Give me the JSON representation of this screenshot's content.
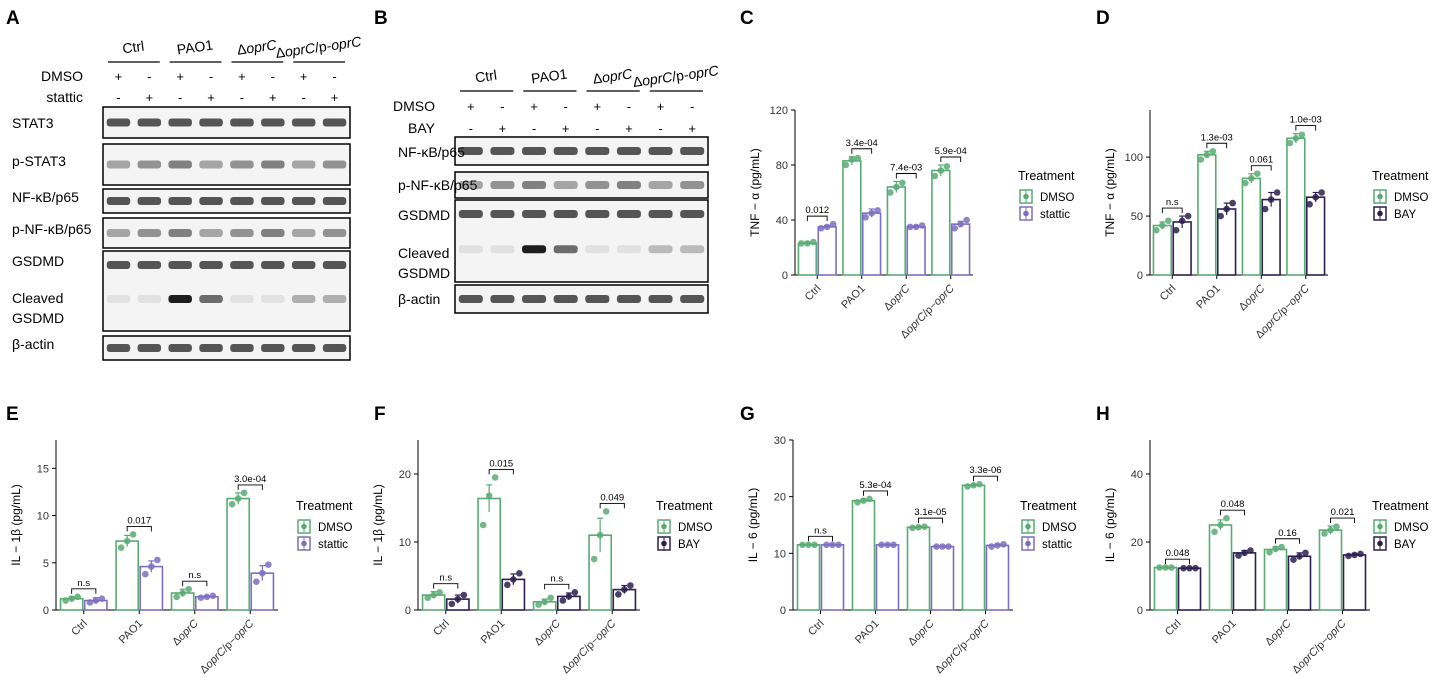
{
  "colors": {
    "dmso": "#5aaa74",
    "stattic": "#7b6fc0",
    "bay": "#2c1f4f"
  },
  "blots": {
    "A": {
      "letter": "A",
      "groups": [
        "Ctrl",
        "PAO1",
        "ΔoprC",
        "ΔoprC/p-oprC"
      ],
      "treat_rows": [
        {
          "label": "DMSO",
          "signs": [
            "+",
            "-",
            "+",
            "-",
            "+",
            "-",
            "+",
            "-"
          ]
        },
        {
          "label": "stattic",
          "signs": [
            "-",
            "+",
            "-",
            "+",
            "-",
            "+",
            "-",
            "+"
          ]
        }
      ],
      "boxes": [
        {
          "labels": [
            "STAT3"
          ]
        },
        {
          "labels": [
            "p-STAT3"
          ]
        },
        {
          "labels": [
            "NF-κB/p65"
          ]
        },
        {
          "labels": [
            "p-NF-κB/p65"
          ]
        },
        {
          "labels": [
            "GSDMD",
            "Cleaved",
            "GSDMD"
          ]
        },
        {
          "labels": [
            "β-actin"
          ]
        }
      ]
    },
    "B": {
      "letter": "B",
      "groups": [
        "Ctrl",
        "PAO1",
        "ΔoprC",
        "ΔoprC/p-oprC"
      ],
      "treat_rows": [
        {
          "label": "DMSO",
          "signs": [
            "+",
            "-",
            "+",
            "-",
            "+",
            "-",
            "+",
            "-"
          ]
        },
        {
          "label": "BAY",
          "signs": [
            "-",
            "+",
            "-",
            "+",
            "-",
            "+",
            "-",
            "+"
          ]
        }
      ],
      "boxes": [
        {
          "labels": [
            "NF-κB/p65"
          ]
        },
        {
          "labels": [
            "p-NF-κB/p65"
          ]
        },
        {
          "labels": [
            "GSDMD",
            "Cleaved",
            "GSDMD"
          ]
        },
        {
          "labels": [
            "β-actin"
          ]
        }
      ]
    }
  },
  "chart_data": [
    {
      "letter": "C",
      "type": "bar",
      "ylabel": "TNF − α (pg/mL)",
      "ylim": [
        0,
        120
      ],
      "yticks": [
        0,
        40,
        80,
        120
      ],
      "categories": [
        "Ctrl",
        "PAO1",
        "ΔoprC",
        "ΔoprC/p−oprC"
      ],
      "legend_title": "Treatment",
      "series": [
        {
          "name": "DMSO",
          "values": [
            23,
            83,
            64,
            76
          ],
          "err": [
            1,
            3,
            4,
            4
          ],
          "points": [
            [
              23,
              23,
              24
            ],
            [
              80,
              84,
              85
            ],
            [
              60,
              64,
              67
            ],
            [
              72,
              76,
              79
            ]
          ]
        },
        {
          "name": "stattic",
          "values": [
            35,
            45,
            35,
            37
          ],
          "err": [
            1,
            3,
            1,
            2
          ],
          "points": [
            [
              34,
              35,
              37
            ],
            [
              42,
              45,
              47
            ],
            [
              35,
              35,
              36
            ],
            [
              34,
              37,
              40
            ]
          ]
        }
      ],
      "pvalues": [
        "0.012",
        "3.4e-04",
        "7.4e-03",
        "5.9e-04"
      ]
    },
    {
      "letter": "D",
      "type": "bar",
      "ylabel": "TNF − α (pg/mL)",
      "ylim": [
        0,
        140
      ],
      "yticks": [
        0,
        50,
        100
      ],
      "categories": [
        "Ctrl",
        "PAO1",
        "ΔoprC",
        "ΔoprC/p−oprC"
      ],
      "legend_title": "Treatment",
      "series": [
        {
          "name": "DMSO",
          "values": [
            42,
            102,
            82,
            116
          ],
          "err": [
            3,
            3,
            4,
            4
          ],
          "points": [
            [
              38,
              42,
              46
            ],
            [
              98,
              102,
              105
            ],
            [
              78,
              82,
              86
            ],
            [
              112,
              116,
              119
            ]
          ]
        },
        {
          "name": "BAY",
          "values": [
            45,
            56,
            64,
            66
          ],
          "err": [
            5,
            5,
            6,
            4
          ],
          "points": [
            [
              38,
              46,
              50
            ],
            [
              50,
              56,
              61
            ],
            [
              56,
              64,
              70
            ],
            [
              60,
              66,
              70
            ]
          ]
        }
      ],
      "pvalues": [
        "n.s",
        "1.3e-03",
        "0.061",
        "1.0e-03"
      ]
    },
    {
      "letter": "E",
      "type": "bar",
      "ylabel": "IL − 1β (pg/mL)",
      "ylim": [
        0,
        18
      ],
      "yticks": [
        0,
        5,
        10,
        15
      ],
      "categories": [
        "Ctrl",
        "PAO1",
        "ΔoprC",
        "ΔoprC/p−oprC"
      ],
      "legend_title": "Treatment",
      "series": [
        {
          "name": "DMSO",
          "values": [
            1.2,
            7.3,
            1.8,
            11.8
          ],
          "err": [
            0.2,
            0.6,
            0.4,
            0.6
          ],
          "points": [
            [
              1.0,
              1.2,
              1.4
            ],
            [
              6.6,
              7.3,
              8.0
            ],
            [
              1.4,
              1.8,
              2.2
            ],
            [
              11.2,
              11.8,
              12.4
            ]
          ]
        },
        {
          "name": "stattic",
          "values": [
            1.0,
            4.6,
            1.4,
            3.9
          ],
          "err": [
            0.3,
            0.6,
            0.1,
            0.8
          ],
          "points": [
            [
              0.8,
              1.0,
              1.2
            ],
            [
              3.8,
              4.6,
              5.3
            ],
            [
              1.3,
              1.4,
              1.5
            ],
            [
              3.0,
              3.9,
              4.8
            ]
          ]
        }
      ],
      "pvalues": [
        "n.s",
        "0.017",
        "n.s",
        "3.0e-04"
      ]
    },
    {
      "letter": "F",
      "type": "bar",
      "ylabel": "IL − 1β (pg/mL)",
      "ylim": [
        0,
        25
      ],
      "yticks": [
        0,
        10,
        20
      ],
      "categories": [
        "Ctrl",
        "PAO1",
        "ΔoprC",
        "ΔoprC/p−oprC"
      ],
      "legend_title": "Treatment",
      "series": [
        {
          "name": "DMSO",
          "values": [
            2.2,
            16.4,
            1.2,
            11.0
          ],
          "err": [
            0.5,
            2.0,
            0.4,
            2.5
          ],
          "points": [
            [
              1.8,
              2.2,
              2.6
            ],
            [
              12.5,
              16.8,
              19.5
            ],
            [
              0.8,
              1.2,
              1.8
            ],
            [
              7.5,
              11,
              14.5
            ]
          ]
        },
        {
          "name": "BAY",
          "values": [
            1.6,
            4.5,
            2.0,
            3.0
          ],
          "err": [
            0.6,
            0.8,
            0.5,
            0.6
          ],
          "points": [
            [
              0.9,
              1.6,
              2.2
            ],
            [
              3.7,
              4.5,
              5.4
            ],
            [
              1.4,
              2.0,
              2.6
            ],
            [
              2.3,
              3.0,
              3.6
            ]
          ]
        }
      ],
      "pvalues": [
        "n.s",
        "0.015",
        "n.s",
        "0.049"
      ]
    },
    {
      "letter": "G",
      "type": "bar",
      "ylabel": "IL − 6 (pg/mL)",
      "ylim": [
        0,
        30
      ],
      "yticks": [
        0,
        10,
        20,
        30
      ],
      "categories": [
        "Ctrl",
        "PAO1",
        "ΔoprC",
        "ΔoprC/p−oprC"
      ],
      "legend_title": "Treatment",
      "series": [
        {
          "name": "DMSO",
          "values": [
            11.5,
            19.3,
            14.6,
            22.0
          ],
          "err": [
            0.1,
            0.3,
            0.2,
            0.2
          ],
          "points": [
            [
              11.5,
              11.5,
              11.5
            ],
            [
              19.0,
              19.3,
              19.6
            ],
            [
              14.5,
              14.6,
              14.7
            ],
            [
              21.8,
              22.0,
              22.2
            ]
          ]
        },
        {
          "name": "stattic",
          "values": [
            11.5,
            11.5,
            11.2,
            11.4
          ],
          "err": [
            0.1,
            0.1,
            0.1,
            0.2
          ],
          "points": [
            [
              11.5,
              11.5,
              11.5
            ],
            [
              11.5,
              11.5,
              11.5
            ],
            [
              11.2,
              11.2,
              11.2
            ],
            [
              11.2,
              11.4,
              11.6
            ]
          ]
        }
      ],
      "pvalues": [
        "n.s",
        "5.3e-04",
        "3.1e-05",
        "3.3e-06"
      ]
    },
    {
      "letter": "H",
      "type": "bar",
      "ylabel": "IL − 6 (pg/mL)",
      "ylim": [
        0,
        50
      ],
      "yticks": [
        0,
        20,
        40
      ],
      "categories": [
        "Ctrl",
        "PAO1",
        "ΔoprC",
        "ΔoprC/p−oprC"
      ],
      "legend_title": "Treatment",
      "series": [
        {
          "name": "DMSO",
          "values": [
            12.5,
            25.0,
            17.8,
            23.5
          ],
          "err": [
            0.1,
            1.5,
            0.8,
            1.2
          ],
          "points": [
            [
              12.5,
              12.5,
              12.5
            ],
            [
              23,
              25,
              27
            ],
            [
              17,
              18,
              18.5
            ],
            [
              22.5,
              23.5,
              24.5
            ]
          ]
        },
        {
          "name": "BAY",
          "values": [
            12.3,
            16.8,
            15.8,
            16.2
          ],
          "err": [
            0.1,
            0.7,
            1.0,
            0.3
          ],
          "points": [
            [
              12.3,
              12.3,
              12.3
            ],
            [
              16,
              16.8,
              17.5
            ],
            [
              14.8,
              15.8,
              16.8
            ],
            [
              15.9,
              16.2,
              16.5
            ]
          ]
        }
      ],
      "pvalues": [
        "0.048",
        "0.048",
        "0.16",
        "0.021"
      ]
    }
  ]
}
